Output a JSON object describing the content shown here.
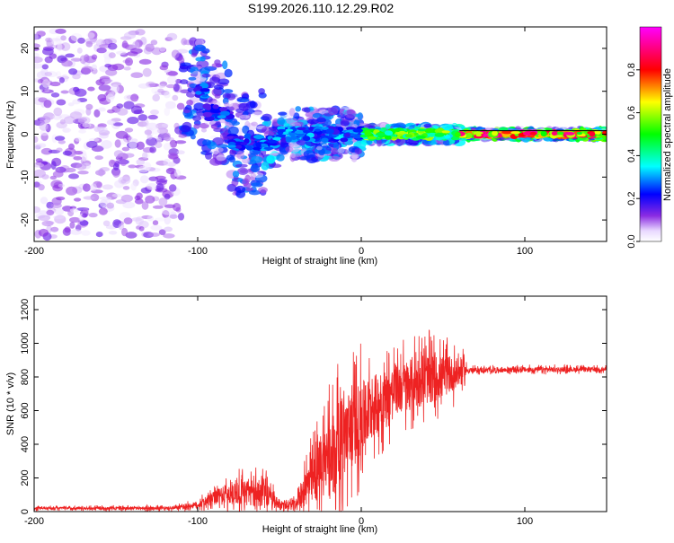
{
  "chart_data": [
    {
      "type": "heatmap",
      "title": "S199.2026.110.12.29.R02",
      "xlabel": "Height of straight line (km)",
      "ylabel": "Frequency (Hz)",
      "xlim": [
        -200,
        150
      ],
      "ylim": [
        -25,
        25
      ],
      "xticks": [
        -200,
        -100,
        0,
        100
      ],
      "yticks": [
        -20,
        -10,
        0,
        10,
        20
      ],
      "colorbar": {
        "label": "Normalized spectral amplitude",
        "range": [
          0,
          1
        ],
        "ticks": [
          0.0,
          0.2,
          0.4,
          0.6,
          0.8
        ],
        "tick_labels": [
          "0.0",
          "0.2",
          "0.4",
          "0.6",
          "0.8"
        ],
        "colormap": "hsv-rainbow (white-violet-blue-cyan-green-yellow-red-magenta)"
      },
      "description_bands": [
        {
          "x_from": -200,
          "x_to": -110,
          "freq_spread": 24,
          "peak_amplitude": 0.15
        },
        {
          "x_from": -110,
          "x_to": -60,
          "freq_spread": 12,
          "peak_amplitude": 0.3
        },
        {
          "x_from": -60,
          "x_to": 0,
          "freq_spread": 6,
          "peak_amplitude": 0.35
        },
        {
          "x_from": 0,
          "x_to": 60,
          "freq_spread": 2,
          "peak_amplitude": 0.65
        },
        {
          "x_from": 60,
          "x_to": 150,
          "freq_spread": 1,
          "peak_amplitude": 0.95
        }
      ]
    },
    {
      "type": "line",
      "title": "",
      "xlabel": "Height of straight line (km)",
      "ylabel": "SNR (10 * v/v)",
      "xlim": [
        -200,
        150
      ],
      "ylim": [
        0,
        1280
      ],
      "xticks": [
        -200,
        -100,
        0,
        100
      ],
      "yticks": [
        0,
        200,
        400,
        600,
        800,
        1000,
        1200
      ],
      "series": [
        {
          "name": "SNR",
          "color": "#ee2222",
          "envelope": [
            {
              "x": -200,
              "base": 20,
              "amp": 15
            },
            {
              "x": -115,
              "base": 20,
              "amp": 20
            },
            {
              "x": -100,
              "base": 40,
              "amp": 40
            },
            {
              "x": -90,
              "base": 80,
              "amp": 80
            },
            {
              "x": -75,
              "base": 120,
              "amp": 160
            },
            {
              "x": -60,
              "base": 110,
              "amp": 180
            },
            {
              "x": -50,
              "base": 40,
              "amp": 60
            },
            {
              "x": -40,
              "base": 40,
              "amp": 60
            },
            {
              "x": -30,
              "base": 180,
              "amp": 300
            },
            {
              "x": -20,
              "base": 350,
              "amp": 450
            },
            {
              "x": -10,
              "base": 450,
              "amp": 500
            },
            {
              "x": 0,
              "base": 550,
              "amp": 450
            },
            {
              "x": 10,
              "base": 650,
              "amp": 350
            },
            {
              "x": 20,
              "base": 720,
              "amp": 300
            },
            {
              "x": 35,
              "base": 780,
              "amp": 320
            },
            {
              "x": 50,
              "base": 800,
              "amp": 250
            },
            {
              "x": 62,
              "base": 830,
              "amp": 150
            },
            {
              "x": 65,
              "base": 840,
              "amp": 30
            },
            {
              "x": 120,
              "base": 845,
              "amp": 30
            },
            {
              "x": 150,
              "base": 845,
              "amp": 25
            }
          ]
        }
      ]
    }
  ]
}
